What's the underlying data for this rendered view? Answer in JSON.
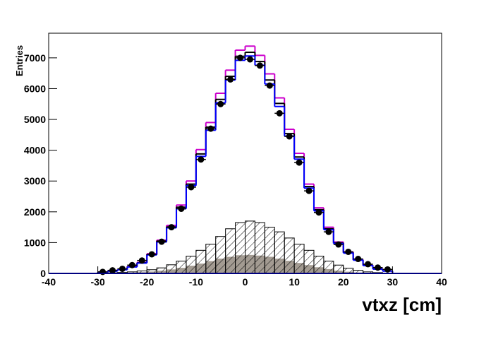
{
  "chart_data": {
    "type": "histogram",
    "x_label": "vtxz [cm]",
    "y_label": "Entries",
    "bins": [
      -30,
      -28,
      -26,
      -24,
      -22,
      -20,
      -18,
      -16,
      -14,
      -12,
      -10,
      -8,
      -6,
      -4,
      -2,
      0,
      2,
      4,
      6,
      8,
      10,
      12,
      14,
      16,
      18,
      20,
      22,
      24,
      26,
      28,
      30
    ],
    "xlim": [
      -40,
      40
    ],
    "xticks": [
      -40,
      -30,
      -20,
      -10,
      0,
      10,
      20,
      30,
      40
    ],
    "ylim": [
      0,
      7800
    ],
    "yticks": [
      0,
      1000,
      2000,
      3000,
      4000,
      5000,
      6000,
      7000
    ],
    "series": [
      {
        "color": "#a39b92",
        "fill": "solid",
        "values": [
          5,
          10,
          15,
          25,
          40,
          60,
          90,
          130,
          180,
          250,
          320,
          400,
          480,
          540,
          590,
          600,
          580,
          540,
          480,
          410,
          340,
          270,
          200,
          140,
          90,
          55,
          30,
          15,
          8,
          3
        ]
      },
      {
        "color": "#000000",
        "fill": "hatch",
        "values": [
          10,
          20,
          30,
          50,
          80,
          120,
          180,
          280,
          400,
          560,
          750,
          950,
          1200,
          1450,
          1650,
          1700,
          1650,
          1500,
          1350,
          1150,
          950,
          750,
          560,
          400,
          270,
          170,
          100,
          50,
          25,
          10
        ]
      },
      {
        "color": "#cc00cc",
        "fill": "none",
        "values": [
          40,
          80,
          130,
          230,
          360,
          640,
          1080,
          1560,
          2220,
          3000,
          4020,
          4900,
          5850,
          6600,
          7250,
          7380,
          7080,
          6480,
          5700,
          4680,
          3900,
          2900,
          2130,
          1500,
          1020,
          700,
          450,
          270,
          150,
          80
        ]
      },
      {
        "color": "#000000",
        "fill": "none",
        "values": [
          38,
          76,
          125,
          220,
          345,
          620,
          1050,
          1510,
          2150,
          2900,
          3880,
          4750,
          5650,
          6400,
          7050,
          7180,
          6880,
          6280,
          5520,
          4540,
          3780,
          2820,
          2070,
          1450,
          990,
          680,
          440,
          260,
          145,
          78
        ]
      },
      {
        "color": "#0000ff",
        "fill": "none",
        "values": [
          36,
          74,
          120,
          210,
          335,
          600,
          1020,
          1480,
          2100,
          2850,
          3800,
          4650,
          5540,
          6280,
          6920,
          7060,
          6760,
          6150,
          5420,
          4460,
          3710,
          2770,
          2030,
          1420,
          970,
          660,
          430,
          255,
          140,
          75
        ]
      },
      {
        "color": "#000000",
        "fill": "points",
        "values": [
          50,
          100,
          150,
          270,
          420,
          620,
          1030,
          1500,
          2100,
          2800,
          3700,
          4700,
          5500,
          6300,
          7000,
          6950,
          6750,
          6100,
          5200,
          4450,
          3600,
          2680,
          1980,
          1350,
          940,
          700,
          470,
          300,
          190,
          130
        ]
      }
    ]
  }
}
